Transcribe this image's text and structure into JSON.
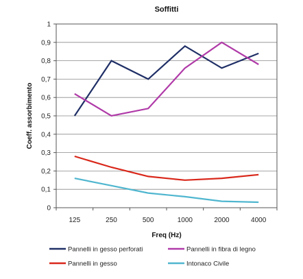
{
  "chart_data": {
    "type": "line",
    "title": "Soffitti",
    "xlabel": "Freq (Hz)",
    "ylabel": "Coeff. assorbimento",
    "categories": [
      "125",
      "250",
      "500",
      "1000",
      "2000",
      "4000"
    ],
    "ylim": [
      0,
      1
    ],
    "yticks": [
      "0",
      "0,1",
      "0,2",
      "0,3",
      "0,4",
      "0,5",
      "0,6",
      "0,7",
      "0,8",
      "0,9",
      "1"
    ],
    "grid": true,
    "legend_position": "bottom",
    "series": [
      {
        "name": "Pannelli in gesso perforati",
        "color": "#1f2f66",
        "values": [
          0.5,
          0.8,
          0.7,
          0.88,
          0.76,
          0.84
        ]
      },
      {
        "name": "Pannelli in fibra di legno",
        "color": "#b03aa8",
        "values": [
          0.62,
          0.5,
          0.54,
          0.76,
          0.9,
          0.78
        ]
      },
      {
        "name": "Pannelli in gesso",
        "color": "#d9271a",
        "values": [
          0.28,
          0.22,
          0.17,
          0.15,
          0.16,
          0.18
        ]
      },
      {
        "name": "Intonaco Civile",
        "color": "#4fb6cf",
        "values": [
          0.16,
          0.12,
          0.08,
          0.06,
          0.035,
          0.03
        ]
      }
    ]
  }
}
